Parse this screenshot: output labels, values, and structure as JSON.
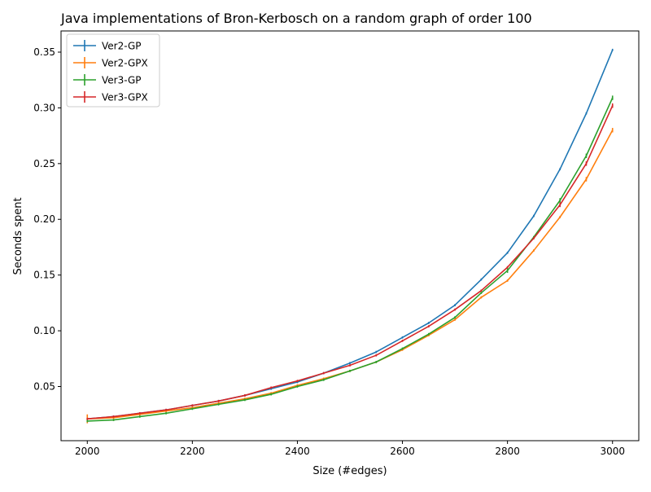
{
  "chart_data": {
    "type": "line",
    "title": "Java implementations of Bron-Kerbosch on a random graph of order 100",
    "xlabel": "Size (#edges)",
    "ylabel": "Seconds spent",
    "xlim": [
      1950,
      3050
    ],
    "ylim": [
      0.0014,
      0.369
    ],
    "xticks": [
      2000,
      2200,
      2400,
      2600,
      2800,
      3000
    ],
    "xtick_labels": [
      "2000",
      "2200",
      "2400",
      "2600",
      "2800",
      "3000"
    ],
    "yticks": [
      0.05,
      0.1,
      0.15,
      0.2,
      0.25,
      0.3,
      0.35
    ],
    "ytick_labels": [
      "0.05",
      "0.10",
      "0.15",
      "0.20",
      "0.25",
      "0.30",
      "0.35"
    ],
    "grid": false,
    "legend_position": "upper-left",
    "x": [
      2000,
      2050,
      2100,
      2150,
      2200,
      2250,
      2300,
      2350,
      2400,
      2450,
      2500,
      2550,
      2600,
      2650,
      2700,
      2750,
      2800,
      2850,
      2900,
      2950,
      3000
    ],
    "series": [
      {
        "name": "Ver2-GP",
        "color": "#1f77b4",
        "values": [
          0.021,
          0.023,
          0.026,
          0.029,
          0.033,
          0.037,
          0.042,
          0.048,
          0.054,
          0.062,
          0.071,
          0.081,
          0.094,
          0.107,
          0.123,
          0.146,
          0.17,
          0.203,
          0.245,
          0.295,
          0.352
        ],
        "errors": [
          0.001,
          0.001,
          0.001,
          0.001,
          0.001,
          0.001,
          0.001,
          0.001,
          0.001,
          0.001,
          0.001,
          0.001,
          0.001,
          0.001,
          0.001,
          0.001,
          0.001,
          0.001,
          0.001,
          0.001,
          0.001
        ]
      },
      {
        "name": "Ver2-GPX",
        "color": "#ff7f0e",
        "values": [
          0.021,
          0.022,
          0.025,
          0.028,
          0.031,
          0.035,
          0.039,
          0.044,
          0.051,
          0.057,
          0.064,
          0.072,
          0.083,
          0.096,
          0.11,
          0.13,
          0.145,
          0.172,
          0.202,
          0.236,
          0.28
        ],
        "errors": [
          0.004,
          0.001,
          0.001,
          0.001,
          0.001,
          0.001,
          0.001,
          0.001,
          0.001,
          0.001,
          0.001,
          0.001,
          0.001,
          0.001,
          0.001,
          0.001,
          0.001,
          0.001,
          0.001,
          0.002,
          0.002
        ]
      },
      {
        "name": "Ver3-GP",
        "color": "#2ca02c",
        "values": [
          0.019,
          0.02,
          0.023,
          0.026,
          0.03,
          0.034,
          0.038,
          0.043,
          0.05,
          0.056,
          0.064,
          0.072,
          0.084,
          0.097,
          0.112,
          0.134,
          0.154,
          0.184,
          0.217,
          0.257,
          0.309
        ],
        "errors": [
          0.001,
          0.001,
          0.001,
          0.001,
          0.001,
          0.001,
          0.001,
          0.001,
          0.001,
          0.001,
          0.001,
          0.001,
          0.001,
          0.001,
          0.001,
          0.001,
          0.002,
          0.001,
          0.002,
          0.002,
          0.002
        ]
      },
      {
        "name": "Ver3-GPX",
        "color": "#d62728",
        "values": [
          0.021,
          0.023,
          0.026,
          0.029,
          0.033,
          0.037,
          0.042,
          0.049,
          0.055,
          0.062,
          0.069,
          0.078,
          0.091,
          0.104,
          0.119,
          0.136,
          0.157,
          0.183,
          0.213,
          0.25,
          0.302
        ],
        "errors": [
          0.001,
          0.001,
          0.001,
          0.001,
          0.001,
          0.001,
          0.001,
          0.001,
          0.001,
          0.001,
          0.001,
          0.001,
          0.001,
          0.001,
          0.001,
          0.001,
          0.001,
          0.001,
          0.002,
          0.002,
          0.002
        ]
      }
    ]
  }
}
